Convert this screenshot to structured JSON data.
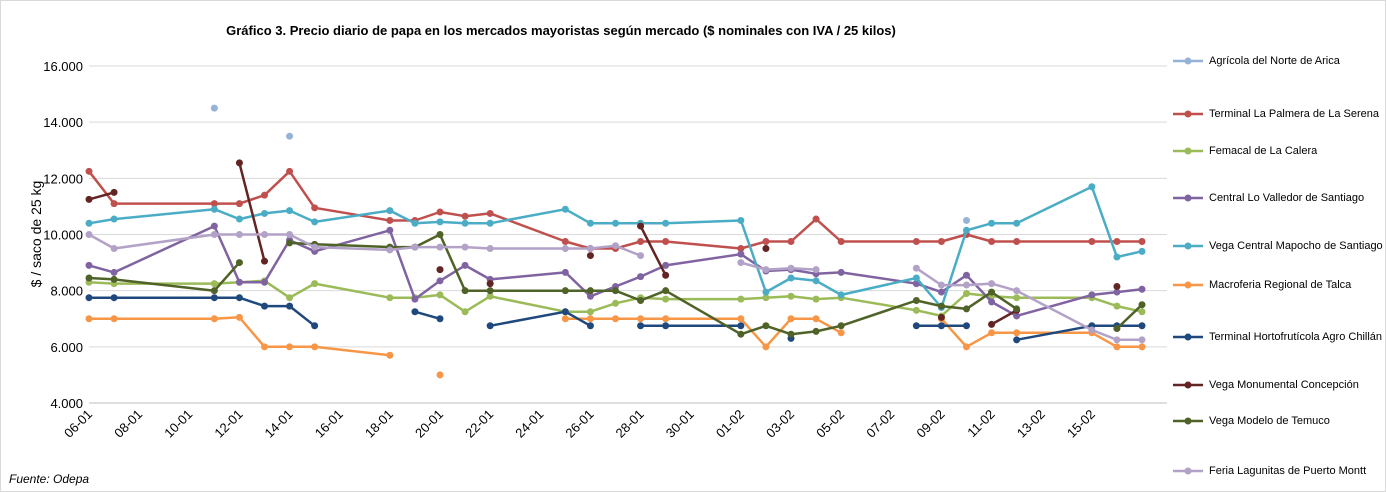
{
  "chart_data": {
    "type": "line",
    "title": "Gráfico 3. Precio diario de papa en los mercados mayoristas según mercado  ($ nominales con IVA / 25 kilos)",
    "y_label": "$ / saco de 25 kg",
    "source": "Fuente: Odepa",
    "x": [
      "06-01",
      "07-01",
      "11-01",
      "12-01",
      "13-01",
      "14-01",
      "15-01",
      "18-01",
      "19-01",
      "20-01",
      "21-01",
      "22-01",
      "25-01",
      "26-01",
      "27-01",
      "28-01",
      "29-01",
      "01-02",
      "02-02",
      "03-02",
      "04-02",
      "05-02",
      "08-02",
      "09-02",
      "10-02",
      "11-02",
      "12-02",
      "15-02",
      "16-02",
      "17-02"
    ],
    "xticks": [
      "06-01",
      "08-01",
      "10-01",
      "12-01",
      "14-01",
      "16-01",
      "18-01",
      "20-01",
      "22-01",
      "24-01",
      "26-01",
      "28-01",
      "30-01",
      "01-02",
      "03-02",
      "05-02",
      "07-02",
      "09-02",
      "11-02",
      "13-02",
      "15-02"
    ],
    "ylim": [
      4000,
      16000
    ],
    "yticks": [
      {
        "value": 4000,
        "label": "4.000"
      },
      {
        "value": 6000,
        "label": "6.000"
      },
      {
        "value": 8000,
        "label": "8.000"
      },
      {
        "value": 10000,
        "label": "10.000"
      },
      {
        "value": 12000,
        "label": "12.000"
      },
      {
        "value": 14000,
        "label": "14.000"
      },
      {
        "value": 16000,
        "label": "16.000"
      }
    ],
    "grid": true,
    "legend": "right",
    "series": [
      {
        "name": "Agrícola del Norte de Arica",
        "color": "#95b3d7",
        "values": [
          null,
          null,
          14500,
          null,
          null,
          13500,
          null,
          null,
          null,
          null,
          null,
          null,
          null,
          null,
          null,
          null,
          null,
          null,
          null,
          null,
          null,
          null,
          null,
          null,
          10500,
          null,
          null,
          null,
          null,
          null
        ]
      },
      {
        "name": "Terminal La Palmera de La Serena",
        "color": "#c0504d",
        "values": [
          12250,
          11100,
          11100,
          11100,
          11400,
          12250,
          10950,
          10500,
          10500,
          10800,
          10650,
          10750,
          9750,
          9500,
          9500,
          9750,
          9750,
          9500,
          9750,
          9750,
          10550,
          9750,
          9750,
          9750,
          10000,
          9750,
          9750,
          9750,
          9750,
          9750
        ]
      },
      {
        "name": "Femacal de La Calera",
        "color": "#9bbb59",
        "values": [
          8300,
          8250,
          8250,
          8300,
          8350,
          7750,
          8250,
          7750,
          7750,
          7850,
          7250,
          7800,
          7250,
          7250,
          7550,
          7750,
          7700,
          7700,
          7750,
          7800,
          7700,
          7750,
          7300,
          7100,
          7900,
          7800,
          7750,
          7750,
          7450,
          7250
        ]
      },
      {
        "name": "Central Lo Valledor de Santiago",
        "color": "#8064a2",
        "values": [
          8900,
          8650,
          10300,
          8300,
          8300,
          9800,
          9400,
          10150,
          7700,
          8350,
          8900,
          8400,
          8650,
          7800,
          8150,
          8500,
          8900,
          9300,
          8700,
          8750,
          8600,
          8650,
          8250,
          7950,
          8550,
          7600,
          7100,
          7850,
          7950,
          8050
        ]
      },
      {
        "name": "Vega Central Mapocho de Santiago",
        "color": "#4bacc6",
        "values": [
          10400,
          10550,
          10900,
          10550,
          10750,
          10850,
          10450,
          10850,
          10400,
          10450,
          10400,
          10400,
          10900,
          10400,
          10400,
          10400,
          10400,
          10500,
          7950,
          8450,
          8350,
          7850,
          8450,
          7400,
          10150,
          10400,
          10400,
          11700,
          9200,
          9400
        ]
      },
      {
        "name": "Macroferia Regional de Talca",
        "color": "#f79646",
        "values": [
          7000,
          7000,
          7000,
          7050,
          6000,
          6000,
          6000,
          5700,
          null,
          5000,
          null,
          null,
          7000,
          7000,
          7000,
          7000,
          7000,
          7000,
          6000,
          7000,
          7000,
          6500,
          null,
          7000,
          6000,
          6500,
          6500,
          6500,
          6000,
          6000
        ]
      },
      {
        "name": "Terminal Hortofrutícola Agro Chillán",
        "color": "#1f497d",
        "values": [
          7750,
          7750,
          7750,
          7750,
          7450,
          7450,
          6750,
          null,
          7250,
          7000,
          null,
          6750,
          7250,
          6750,
          null,
          6750,
          6750,
          6750,
          null,
          6300,
          null,
          null,
          6750,
          6750,
          6750,
          null,
          6250,
          6750,
          6750,
          6750
        ]
      },
      {
        "name": "Vega Monumental Concepción",
        "color": "#632523",
        "values": [
          11250,
          11500,
          null,
          12550,
          9050,
          null,
          null,
          null,
          null,
          8750,
          null,
          8250,
          null,
          9250,
          null,
          10300,
          8550,
          null,
          9500,
          null,
          null,
          null,
          null,
          7050,
          null,
          6800,
          7300,
          null,
          8150,
          null
        ]
      },
      {
        "name": "Vega Modelo de Temuco",
        "color": "#4f6228",
        "values": [
          8450,
          8400,
          8000,
          9000,
          null,
          9700,
          9650,
          9550,
          9550,
          10000,
          8000,
          8000,
          8000,
          8000,
          8000,
          7650,
          8000,
          6450,
          6750,
          6450,
          6550,
          6750,
          7650,
          7450,
          7350,
          7950,
          7350,
          null,
          6650,
          7500
        ]
      },
      {
        "name": "Feria Lagunitas de Puerto Montt",
        "color": "#b3a2c7",
        "values": [
          10000,
          9500,
          10000,
          10000,
          10000,
          10000,
          9550,
          9450,
          9550,
          9550,
          9550,
          9500,
          9500,
          9500,
          9600,
          9250,
          null,
          9000,
          8750,
          8800,
          8750,
          null,
          8800,
          8200,
          8200,
          8250,
          8000,
          6600,
          6250,
          6250
        ]
      }
    ]
  }
}
